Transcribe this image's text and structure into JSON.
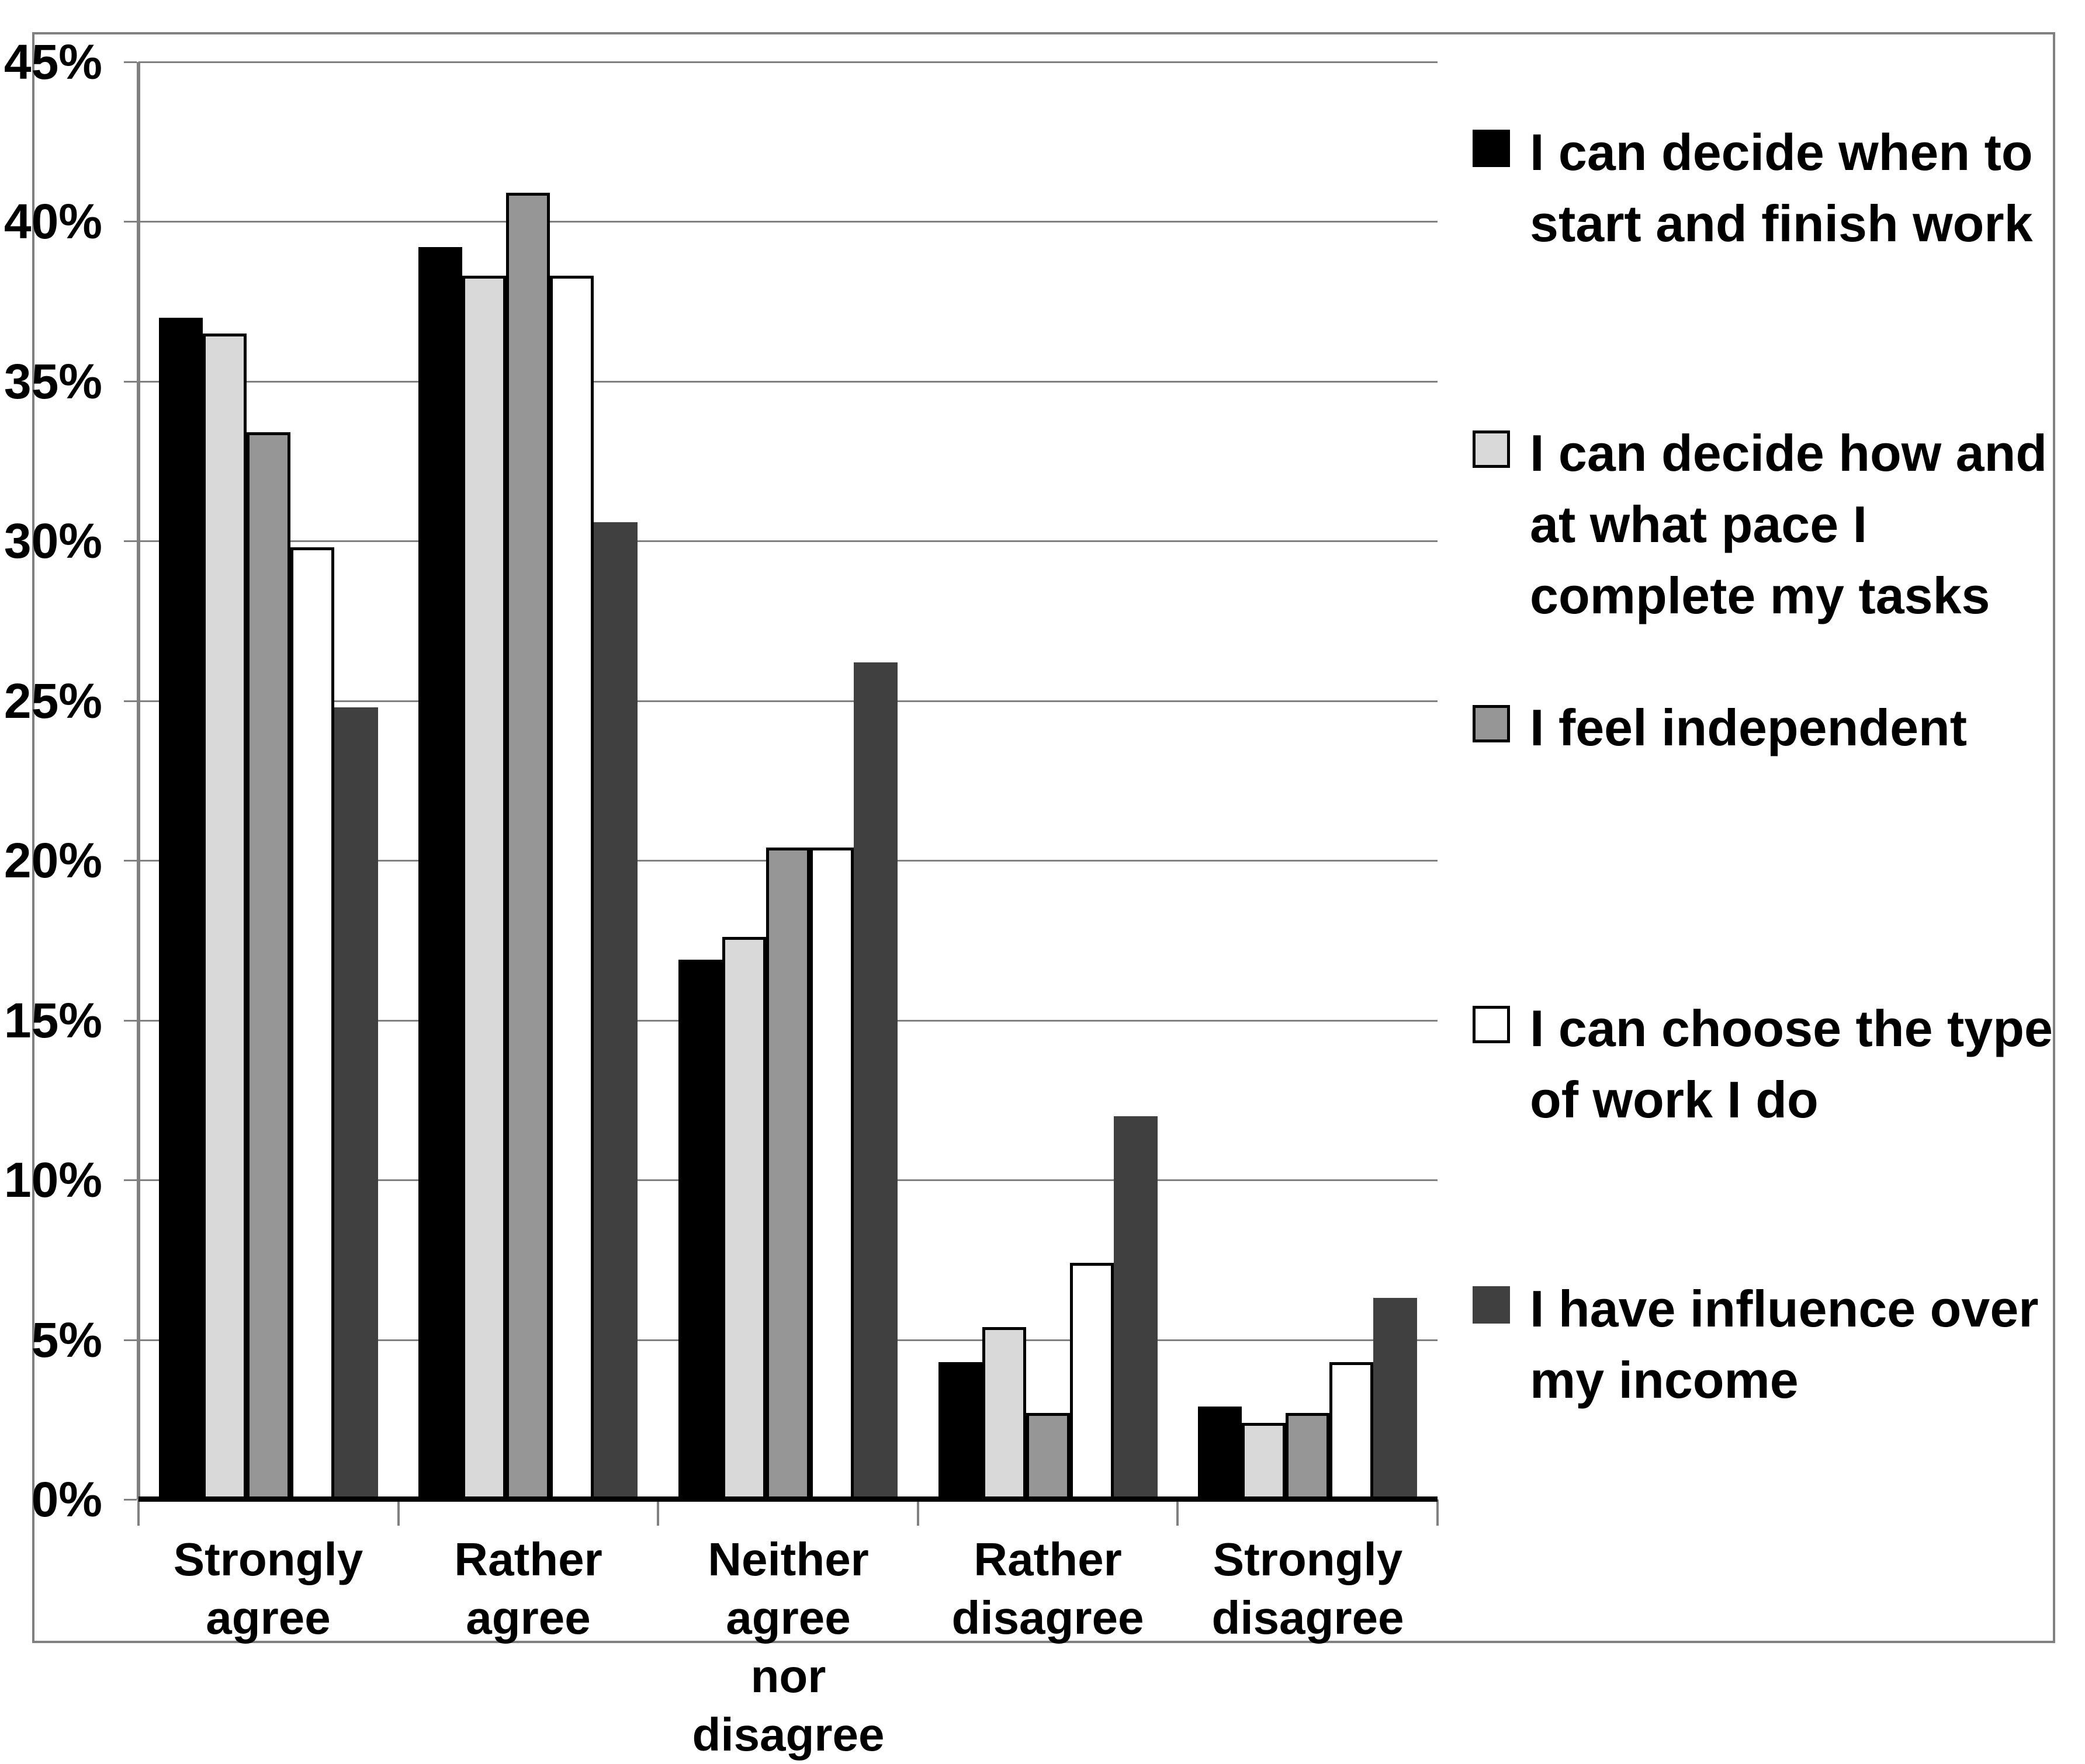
{
  "chart_data": {
    "type": "bar",
    "title": "",
    "categories": [
      "Strongly agree",
      "Rather agree",
      "Neither agree nor disagree",
      "Rather disagree",
      "Strongly disagree"
    ],
    "category_label_lines": [
      [
        "Strongly",
        "agree"
      ],
      [
        "Rather agree"
      ],
      [
        "Neither agree",
        "nor disagree"
      ],
      [
        "Rather",
        "disagree"
      ],
      [
        "Strongly",
        "disagree"
      ]
    ],
    "series": [
      {
        "name": "I can decide when to start and finish work",
        "legend_lines": [
          "I can decide when to",
          "start and finish work"
        ],
        "color": "#000000",
        "border_color": "#000000",
        "values": [
          37.0,
          39.2,
          16.9,
          4.3,
          2.9
        ]
      },
      {
        "name": "I can decide how and at what pace I complete my tasks",
        "legend_lines": [
          "I can decide how and",
          "at what pace I",
          "complete my tasks"
        ],
        "color": "#d9d9d9",
        "border_color": "#000000",
        "values": [
          36.5,
          38.3,
          17.6,
          5.4,
          2.4
        ]
      },
      {
        "name": "I feel independent",
        "legend_lines": [
          "I feel independent"
        ],
        "color": "#969696",
        "border_color": "#000000",
        "values": [
          33.4,
          40.9,
          20.4,
          2.7,
          2.7
        ]
      },
      {
        "name": "I can choose the type of work I do",
        "legend_lines": [
          "I can choose the type",
          "of work I do"
        ],
        "color": "#ffffff",
        "border_color": "#000000",
        "values": [
          29.8,
          38.3,
          20.4,
          7.4,
          4.3
        ]
      },
      {
        "name": "I have influence over my income",
        "legend_lines": [
          "I have influence over",
          "my income"
        ],
        "color": "#404040",
        "border_color": null,
        "values": [
          24.8,
          30.6,
          26.2,
          12.0,
          6.3
        ]
      }
    ],
    "y_axis": {
      "min": 0,
      "max": 45,
      "step": 5,
      "unit": "%",
      "tick_labels": [
        "0%",
        "5%",
        "10%",
        "15%",
        "20%",
        "25%",
        "30%",
        "35%",
        "40%",
        "45%"
      ]
    },
    "ylim": [
      0,
      45
    ],
    "grid": true,
    "legend_position": "right"
  },
  "styles": {
    "background": "#ffffff",
    "gridline_color": "#808080",
    "axis_color": "#808080",
    "baseline_color": "#000000",
    "tick_color": "#808080",
    "outer_border_color": "#808080",
    "text_color": "#000000"
  }
}
